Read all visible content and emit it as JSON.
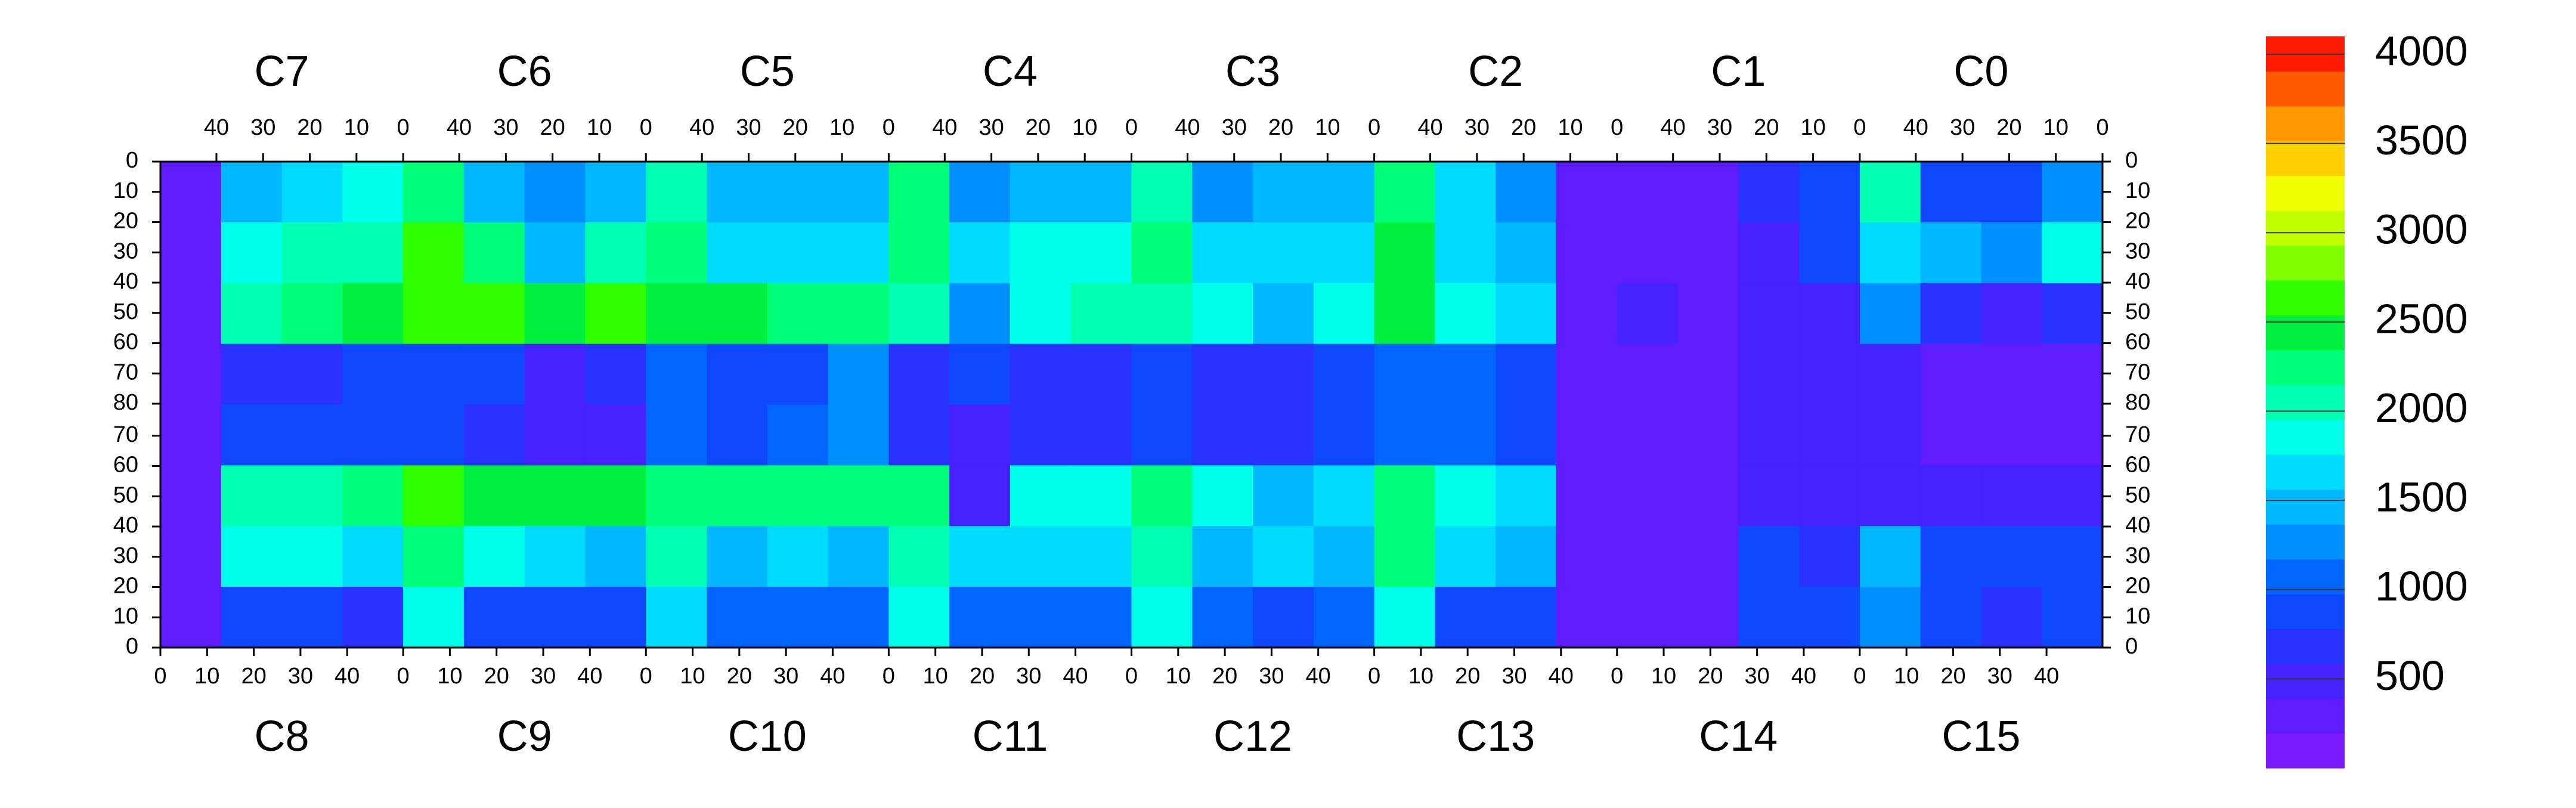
{
  "chart_data": {
    "type": "heatmap",
    "chips_top": [
      "C7",
      "C6",
      "C5",
      "C4",
      "C3",
      "C2",
      "C1",
      "C0"
    ],
    "chips_bottom": [
      "C8",
      "C9",
      "C10",
      "C11",
      "C12",
      "C13",
      "C14",
      "C15"
    ],
    "xlim": [
      0,
      52
    ],
    "xticks": [
      0,
      10,
      20,
      30,
      40
    ],
    "ylim": [
      0,
      80
    ],
    "yticks": [
      0,
      10,
      20,
      30,
      40,
      50,
      60,
      70,
      80
    ],
    "zlim": [
      0,
      4100
    ],
    "zticks": [
      500,
      1000,
      1500,
      2000,
      2500,
      3000,
      3500,
      4000
    ],
    "colorscale": [
      "#7a1cff",
      "#5f1cff",
      "#4522ff",
      "#2a32ff",
      "#1048ff",
      "#0066ff",
      "#0090ff",
      "#00b8ff",
      "#00dcff",
      "#00ffe8",
      "#00ffb0",
      "#00ff78",
      "#00f040",
      "#30ff00",
      "#80ff00",
      "#c0ff00",
      "#f0ff00",
      "#ffd000",
      "#ff9800",
      "#ff5a00",
      "#ff1a00"
    ],
    "values": [
      [
        300,
        1500,
        1700,
        1900,
        2200,
        1500,
        1300,
        1400,
        2000,
        1400,
        1400,
        1500,
        2200,
        1300,
        1400,
        1500,
        2000,
        1300,
        1400,
        1500,
        2200,
        1600,
        1200,
        300,
        300,
        300,
        600,
        900,
        2000,
        800,
        900,
        1200
      ],
      [
        300,
        1800,
        2000,
        2100,
        2600,
        2200,
        1500,
        2000,
        2200,
        1600,
        1700,
        1600,
        2300,
        1700,
        1800,
        1900,
        2200,
        1600,
        1700,
        1600,
        2400,
        1700,
        1500,
        300,
        300,
        300,
        500,
        800,
        1700,
        1500,
        1300,
        1800
      ],
      [
        300,
        2000,
        2200,
        2400,
        2700,
        2600,
        2500,
        2600,
        2400,
        2400,
        2300,
        2300,
        2100,
        1300,
        1800,
        2000,
        2100,
        1800,
        1500,
        1900,
        2400,
        1900,
        1700,
        300,
        400,
        300,
        400,
        400,
        1300,
        600,
        500,
        600
      ],
      [
        300,
        700,
        700,
        900,
        900,
        800,
        500,
        600,
        1000,
        900,
        900,
        1300,
        700,
        800,
        600,
        700,
        900,
        700,
        700,
        900,
        1100,
        1000,
        900,
        300,
        300,
        300,
        500,
        400,
        400,
        300,
        300,
        300
      ],
      [
        300,
        800,
        800,
        900,
        900,
        700,
        500,
        500,
        1000,
        900,
        1000,
        1300,
        700,
        500,
        600,
        700,
        900,
        700,
        700,
        900,
        1100,
        1000,
        900,
        300,
        300,
        300,
        400,
        400,
        400,
        300,
        300,
        300
      ],
      [
        300,
        2000,
        2100,
        2200,
        2700,
        2500,
        2400,
        2400,
        2300,
        2300,
        2200,
        2300,
        2200,
        500,
        1800,
        1900,
        2200,
        1800,
        1500,
        1700,
        2300,
        1800,
        1700,
        300,
        300,
        300,
        400,
        500,
        500,
        400,
        400,
        500
      ],
      [
        300,
        1800,
        1900,
        1700,
        2200,
        1800,
        1600,
        1400,
        2000,
        1500,
        1600,
        1400,
        2100,
        1600,
        1700,
        1700,
        2100,
        1500,
        1600,
        1500,
        2200,
        1600,
        1500,
        300,
        300,
        300,
        800,
        700,
        1400,
        900,
        900,
        900
      ],
      [
        300,
        900,
        800,
        700,
        1800,
        900,
        900,
        900,
        1700,
        1000,
        1000,
        1000,
        1800,
        1000,
        1000,
        1100,
        1800,
        1000,
        900,
        1100,
        1800,
        900,
        800,
        300,
        300,
        300,
        900,
        900,
        1300,
        800,
        700,
        800
      ]
    ]
  }
}
